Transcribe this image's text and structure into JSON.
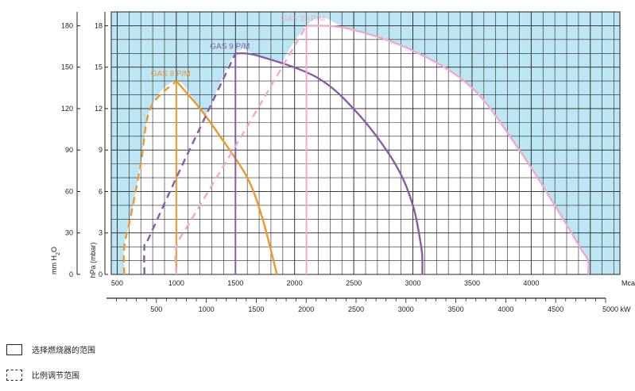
{
  "chart_data": {
    "type": "line",
    "colors": {
      "fill": "#bde6f4",
      "grid": "#222222",
      "gas8": "#f0962a",
      "gas9": "#8c5aa6",
      "gas10": "#f2a9c9"
    },
    "x_axis_mcal": {
      "unit_label": "Mcal/h",
      "range": [
        450,
        4750
      ],
      "ticks": [
        500,
        1000,
        1500,
        2000,
        2500,
        3000,
        3500,
        4000
      ],
      "tick_labels": [
        "500",
        "1000",
        "1500",
        "2000",
        "2500",
        "3000",
        "3500",
        "4000"
      ]
    },
    "x_axis_kw": {
      "unit_label": "5000 kW",
      "ticks": [
        500,
        1000,
        1500,
        2000,
        2500,
        3000,
        3500,
        4000,
        4500
      ],
      "tick_labels": [
        "500",
        "1000",
        "1500",
        "2000",
        "2500",
        "3000",
        "3500",
        "4000",
        "4500"
      ]
    },
    "y_axis_hpa": {
      "label": "hPa (mbar)",
      "range": [
        0,
        19
      ],
      "ticks": [
        0,
        3,
        6,
        9,
        12,
        15,
        18
      ],
      "tick_labels": [
        "0",
        "3",
        "6",
        "9",
        "12",
        "15",
        "18"
      ]
    },
    "y_axis_mmh2o": {
      "label_main": "mm H",
      "label_sub": "2",
      "label_end": "O",
      "tick_labels": [
        "0",
        "30",
        "60",
        "90",
        "120",
        "150",
        "180"
      ]
    },
    "series": [
      {
        "name": "GAS 8 P/M",
        "color_key": "gas8",
        "dashed": [
          [
            560,
            0
          ],
          [
            560,
            2
          ],
          [
            610,
            4
          ],
          [
            700,
            8
          ],
          [
            780,
            12
          ],
          [
            1000,
            14
          ]
        ],
        "solid": [
          [
            1000,
            14
          ],
          [
            1200,
            12
          ],
          [
            1370,
            10
          ],
          [
            1600,
            7
          ],
          [
            1730,
            4
          ],
          [
            1850,
            0
          ]
        ],
        "vertical_at": 1000
      },
      {
        "name": "GAS 9 P/M",
        "color_key": "gas9",
        "dashed": [
          [
            730,
            0
          ],
          [
            730,
            2
          ],
          [
            760,
            2.5
          ],
          [
            1000,
            7
          ],
          [
            1250,
            11.5
          ],
          [
            1500,
            16
          ]
        ],
        "solid": [
          [
            1500,
            16
          ],
          [
            1700,
            15.8
          ],
          [
            2200,
            14.2
          ],
          [
            2550,
            11.5
          ],
          [
            2850,
            8
          ],
          [
            3000,
            5
          ],
          [
            3070,
            2
          ],
          [
            3080,
            1
          ],
          [
            3080,
            0
          ]
        ],
        "vertical_at": 1500
      },
      {
        "name": "GAS 10 P/M",
        "color_key": "gas10",
        "dashed": [
          [
            1000,
            0
          ],
          [
            1000,
            2
          ],
          [
            1130,
            4
          ],
          [
            1550,
            10
          ],
          [
            2100,
            18
          ]
        ],
        "solid": [
          [
            2100,
            18
          ],
          [
            2450,
            17.8
          ],
          [
            3000,
            16.2
          ],
          [
            3500,
            13.5
          ],
          [
            3900,
            9
          ],
          [
            4200,
            5
          ],
          [
            4410,
            2
          ],
          [
            4480,
            1
          ],
          [
            4480,
            0
          ]
        ],
        "vertical_at": 2100
      }
    ]
  },
  "legend": {
    "solid_label": "选择燃烧器的范围",
    "dashed_label": "比例调节范围"
  }
}
